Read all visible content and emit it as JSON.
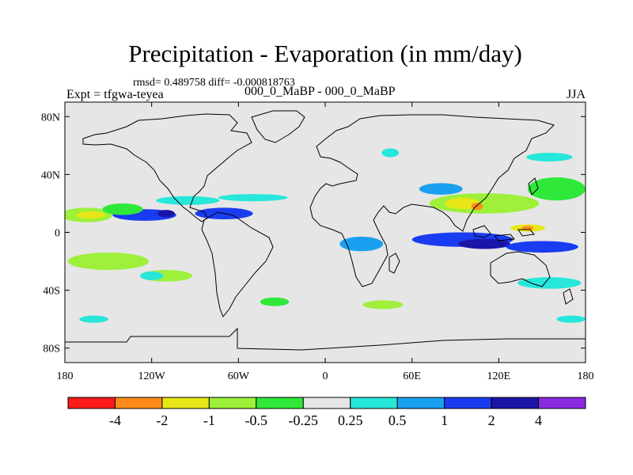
{
  "title": "Precipitation - Evaporation (in mm/day)",
  "stats_line": "rmsd= 0.489758 diff= -0.000818763",
  "left_label": "Expt = tfgwa-teyea",
  "center_label": "000_0_MaBP - 000_0_MaBP",
  "right_label": "JJA",
  "map": {
    "projection": "cylindrical-equidistant",
    "lon_range": [
      -180,
      180
    ],
    "lat_range": [
      -90,
      90
    ],
    "background_color": "#e6e6e6",
    "x_ticks": [
      {
        "lon": -180,
        "label": "180"
      },
      {
        "lon": -120,
        "label": "120W"
      },
      {
        "lon": -60,
        "label": "60W"
      },
      {
        "lon": 0,
        "label": "0"
      },
      {
        "lon": 60,
        "label": "60E"
      },
      {
        "lon": 120,
        "label": "120E"
      },
      {
        "lon": 180,
        "label": "180"
      }
    ],
    "y_ticks": [
      {
        "lat": 80,
        "label": "80N"
      },
      {
        "lat": 40,
        "label": "40N"
      },
      {
        "lat": 0,
        "label": "0"
      },
      {
        "lat": -40,
        "label": "40S"
      },
      {
        "lat": -80,
        "label": "80S"
      }
    ]
  },
  "colorbar": {
    "colors": [
      "#ff1a1a",
      "#ff8c1a",
      "#e8e617",
      "#9ef03a",
      "#2fe83a",
      "#e6e6e6",
      "#27e6da",
      "#1aa0f0",
      "#1a3cf0",
      "#1a14a8",
      "#8a2be2"
    ],
    "labels": [
      "-4",
      "-2",
      "-1",
      "-0.5",
      "-0.25",
      "0.25",
      "0.5",
      "1",
      "2",
      "4"
    ]
  },
  "field_patches": [
    {
      "lon": -125,
      "lat": 12,
      "rlon": 22,
      "rlat": 4,
      "color": "#1a3cf0"
    },
    {
      "lon": -110,
      "lat": 13,
      "rlon": 6,
      "rlat": 2.5,
      "color": "#1a14a8"
    },
    {
      "lon": -70,
      "lat": 13,
      "rlon": 20,
      "rlat": 4,
      "color": "#1a3cf0"
    },
    {
      "lon": -95,
      "lat": 22,
      "rlon": 22,
      "rlat": 3,
      "color": "#27e6da"
    },
    {
      "lon": -50,
      "lat": 24,
      "rlon": 24,
      "rlat": 2.5,
      "color": "#27e6da"
    },
    {
      "lon": -165,
      "lat": 12,
      "rlon": 18,
      "rlat": 5,
      "color": "#9ef03a"
    },
    {
      "lon": -162,
      "lat": 12,
      "rlon": 10,
      "rlat": 2.5,
      "color": "#e8e617"
    },
    {
      "lon": -140,
      "lat": 16,
      "rlon": 14,
      "rlat": 4,
      "color": "#2fe83a"
    },
    {
      "lon": -150,
      "lat": -20,
      "rlon": 28,
      "rlat": 6,
      "color": "#9ef03a"
    },
    {
      "lon": -110,
      "lat": -30,
      "rlon": 18,
      "rlat": 4,
      "color": "#9ef03a"
    },
    {
      "lon": -35,
      "lat": -48,
      "rlon": 10,
      "rlat": 3,
      "color": "#2fe83a"
    },
    {
      "lon": 40,
      "lat": -50,
      "rlon": 14,
      "rlat": 3,
      "color": "#9ef03a"
    },
    {
      "lon": 95,
      "lat": -5,
      "rlon": 35,
      "rlat": 5,
      "color": "#1a3cf0"
    },
    {
      "lon": 110,
      "lat": -8,
      "rlon": 18,
      "rlat": 3.5,
      "color": "#1a14a8"
    },
    {
      "lon": 150,
      "lat": -10,
      "rlon": 25,
      "rlat": 4,
      "color": "#1a3cf0"
    },
    {
      "lon": 110,
      "lat": 20,
      "rlon": 38,
      "rlat": 7,
      "color": "#9ef03a"
    },
    {
      "lon": 95,
      "lat": 20,
      "rlon": 12,
      "rlat": 4,
      "color": "#e8e617"
    },
    {
      "lon": 105,
      "lat": 18,
      "rlon": 4,
      "rlat": 2.5,
      "color": "#ff8c1a"
    },
    {
      "lon": 140,
      "lat": 3,
      "rlon": 12,
      "rlat": 2.5,
      "color": "#e8e617"
    },
    {
      "lon": 140,
      "lat": 3,
      "rlon": 4,
      "rlat": 1.5,
      "color": "#ff8c1a"
    },
    {
      "lon": 160,
      "lat": 30,
      "rlon": 20,
      "rlat": 8,
      "color": "#2fe83a"
    },
    {
      "lon": 80,
      "lat": 30,
      "rlon": 15,
      "rlat": 4,
      "color": "#1aa0f0"
    },
    {
      "lon": 155,
      "lat": 52,
      "rlon": 16,
      "rlat": 3,
      "color": "#27e6da"
    },
    {
      "lon": 45,
      "lat": 55,
      "rlon": 6,
      "rlat": 3,
      "color": "#27e6da"
    },
    {
      "lon": 25,
      "lat": -8,
      "rlon": 15,
      "rlat": 5,
      "color": "#1aa0f0"
    },
    {
      "lon": 155,
      "lat": -35,
      "rlon": 22,
      "rlat": 4,
      "color": "#27e6da"
    },
    {
      "lon": -160,
      "lat": -60,
      "rlon": 10,
      "rlat": 2.5,
      "color": "#27e6da"
    },
    {
      "lon": 170,
      "lat": -60,
      "rlon": 10,
      "rlat": 2.5,
      "color": "#27e6da"
    },
    {
      "lon": -120,
      "lat": -30,
      "rlon": 8,
      "rlat": 3,
      "color": "#27e6da"
    }
  ]
}
